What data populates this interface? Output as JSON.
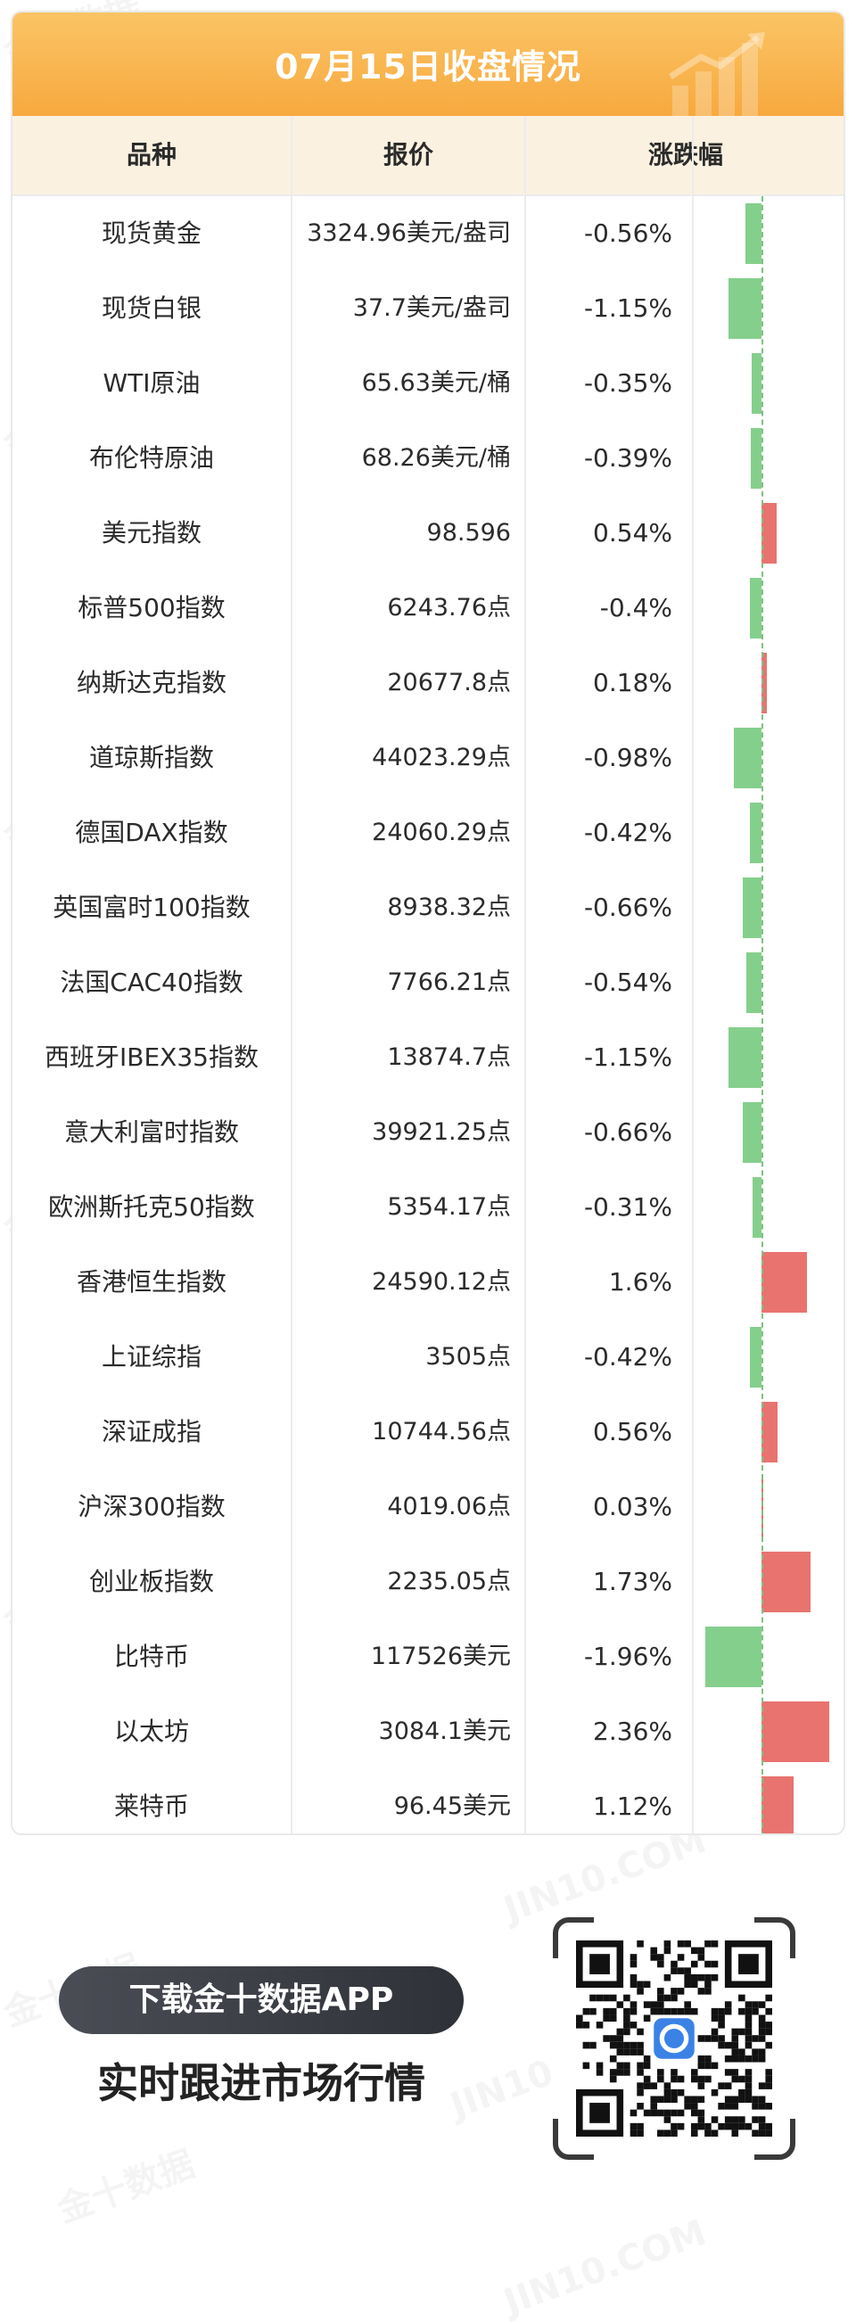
{
  "header": {
    "title": "07月15日收盘情况",
    "columns": [
      "品种",
      "报价",
      "涨跌幅"
    ]
  },
  "rows": [
    {
      "name": "现货黄金",
      "price": "3324.96美元/盎司",
      "change": "-0.56%",
      "value": -0.56
    },
    {
      "name": "现货白银",
      "price": "37.7美元/盎司",
      "change": "-1.15%",
      "value": -1.15
    },
    {
      "name": "WTI原油",
      "price": "65.63美元/桶",
      "change": "-0.35%",
      "value": -0.35
    },
    {
      "name": "布伦特原油",
      "price": "68.26美元/桶",
      "change": "-0.39%",
      "value": -0.39
    },
    {
      "name": "美元指数",
      "price": "98.596",
      "change": "0.54%",
      "value": 0.54
    },
    {
      "name": "标普500指数",
      "price": "6243.76点",
      "change": "-0.4%",
      "value": -0.4
    },
    {
      "name": "纳斯达克指数",
      "price": "20677.8点",
      "change": "0.18%",
      "value": 0.18
    },
    {
      "name": "道琼斯指数",
      "price": "44023.29点",
      "change": "-0.98%",
      "value": -0.98
    },
    {
      "name": "德国DAX指数",
      "price": "24060.29点",
      "change": "-0.42%",
      "value": -0.42
    },
    {
      "name": "英国富时100指数",
      "price": "8938.32点",
      "change": "-0.66%",
      "value": -0.66
    },
    {
      "name": "法国CAC40指数",
      "price": "7766.21点",
      "change": "-0.54%",
      "value": -0.54
    },
    {
      "name": "西班牙IBEX35指数",
      "price": "13874.7点",
      "change": "-1.15%",
      "value": -1.15
    },
    {
      "name": "意大利富时指数",
      "price": "39921.25点",
      "change": "-0.66%",
      "value": -0.66
    },
    {
      "name": "欧洲斯托克50指数",
      "price": "5354.17点",
      "change": "-0.31%",
      "value": -0.31
    },
    {
      "name": "香港恒生指数",
      "price": "24590.12点",
      "change": "1.6%",
      "value": 1.6
    },
    {
      "name": "上证综指",
      "price": "3505点",
      "change": "-0.42%",
      "value": -0.42
    },
    {
      "name": "深证成指",
      "price": "10744.56点",
      "change": "0.56%",
      "value": 0.56
    },
    {
      "name": "沪深300指数",
      "price": "4019.06点",
      "change": "0.03%",
      "value": 0.03
    },
    {
      "name": "创业板指数",
      "price": "2235.05点",
      "change": "1.73%",
      "value": 1.73
    },
    {
      "name": "比特币",
      "price": "117526美元",
      "change": "-1.96%",
      "value": -1.96
    },
    {
      "name": "以太坊",
      "price": "3084.1美元",
      "change": "2.36%",
      "value": 2.36
    },
    {
      "name": "莱特币",
      "price": "96.45美元",
      "change": "1.12%",
      "value": 1.12
    }
  ],
  "colors": {
    "positive": "#e8736f",
    "negative": "#85cf8c",
    "banner": "#f7a93f"
  },
  "promo": {
    "button_label": "下载金十数据APP",
    "subtitle": "实时跟进市场行情"
  },
  "watermark": {
    "text_cn": "金十数据",
    "text_en": "JIN10.COM"
  }
}
